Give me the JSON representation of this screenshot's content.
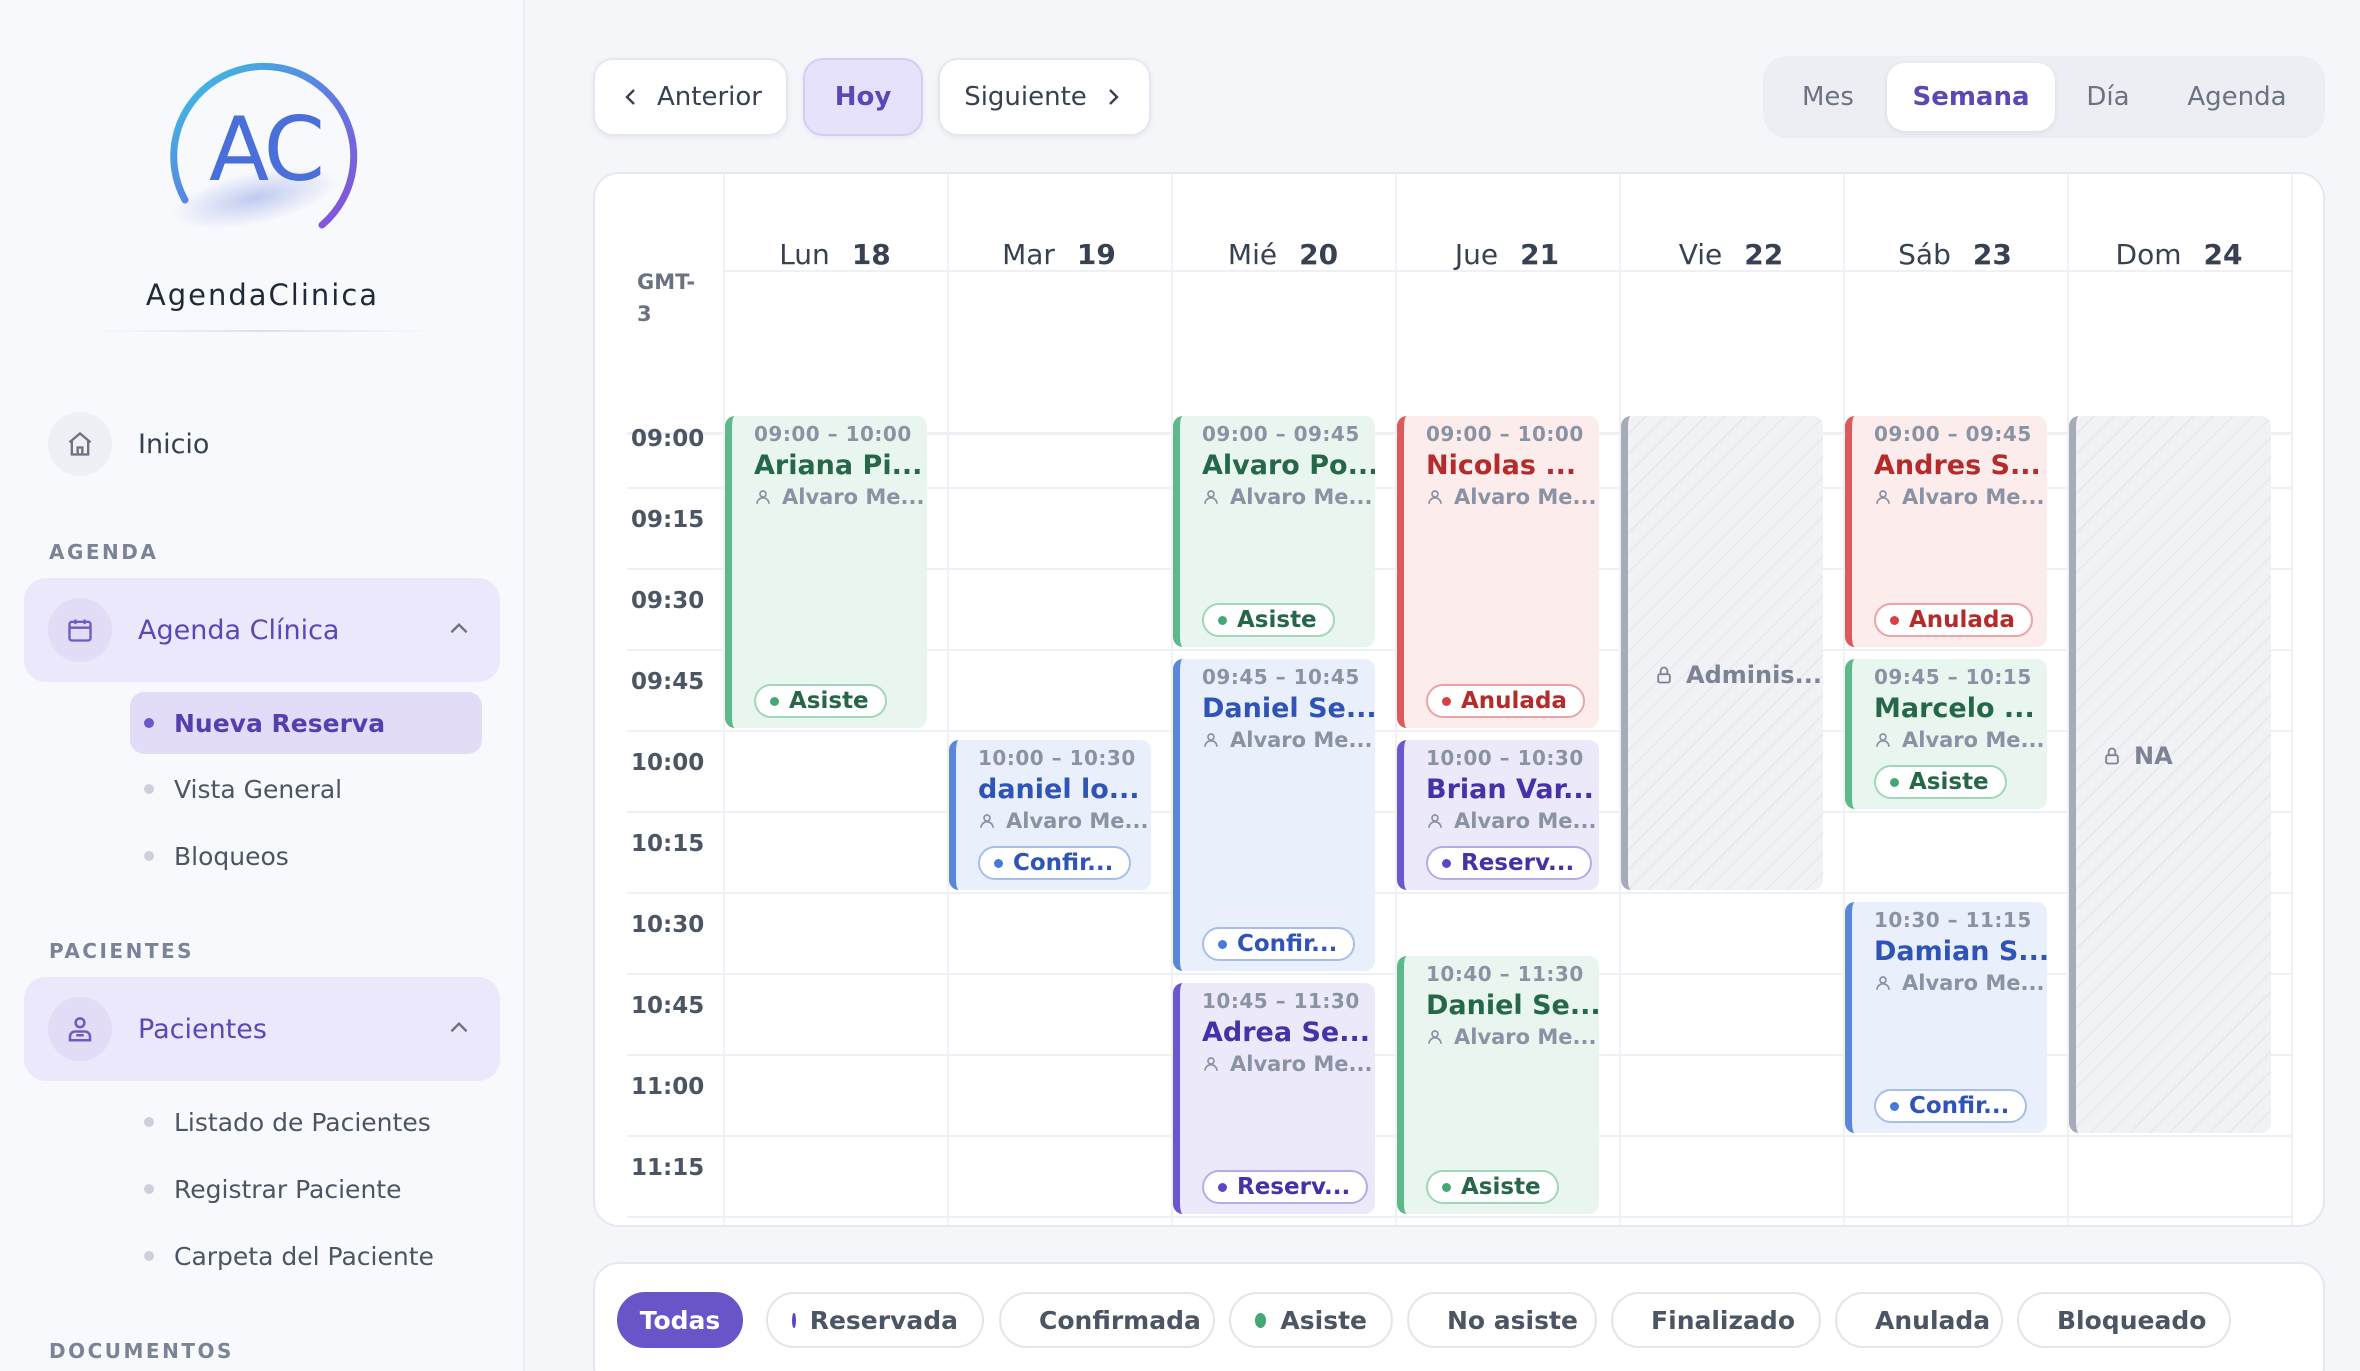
{
  "sidebar": {
    "logo_letters": "AC",
    "brand": "AgendaClinica",
    "home_label": "Inicio",
    "sections": [
      {
        "title": "AGENDA",
        "group_label": "Agenda Clínica",
        "items": [
          "Nueva Reserva",
          "Vista General",
          "Bloqueos"
        ],
        "active_item": "Nueva Reserva"
      },
      {
        "title": "PACIENTES",
        "group_label": "Pacientes",
        "items": [
          "Listado de Pacientes",
          "Registrar Paciente",
          "Carpeta del Paciente"
        ]
      },
      {
        "title": "DOCUMENTOS"
      }
    ]
  },
  "toolbar": {
    "prev_label": "Anterior",
    "today_label": "Hoy",
    "next_label": "Siguiente",
    "views": [
      "Mes",
      "Semana",
      "Día",
      "Agenda"
    ],
    "active_view": "Semana"
  },
  "calendar": {
    "timezone": "GMT-3",
    "days": [
      {
        "name": "Lun",
        "num": "18"
      },
      {
        "name": "Mar",
        "num": "19"
      },
      {
        "name": "Mié",
        "num": "20"
      },
      {
        "name": "Jue",
        "num": "21"
      },
      {
        "name": "Vie",
        "num": "22"
      },
      {
        "name": "Sáb",
        "num": "23"
      },
      {
        "name": "Dom",
        "num": "24"
      }
    ],
    "times": [
      "09:00",
      "09:15",
      "09:30",
      "09:45",
      "10:00",
      "10:15",
      "10:30",
      "10:45",
      "11:00",
      "11:15"
    ],
    "events": [
      {
        "day": 0,
        "start": "09:00",
        "end": "10:00",
        "time": "09:00 – 10:00",
        "title": "Ariana Pi...",
        "doctor": "Alvaro Me...",
        "status": "Asiste",
        "color": "green"
      },
      {
        "day": 1,
        "start": "10:00",
        "end": "10:30",
        "time": "10:00 – 10:30",
        "title": "daniel lo...",
        "doctor": "Alvaro Me...",
        "status": "Confir...",
        "color": "blue"
      },
      {
        "day": 2,
        "start": "09:00",
        "end": "09:45",
        "time": "09:00 – 09:45",
        "title": "Alvaro Po...",
        "doctor": "Alvaro Me...",
        "status": "Asiste",
        "color": "green"
      },
      {
        "day": 2,
        "start": "09:45",
        "end": "10:45",
        "time": "09:45 – 10:45",
        "title": "Daniel Se...",
        "doctor": "Alvaro Me...",
        "status": "Confir...",
        "color": "blue"
      },
      {
        "day": 2,
        "start": "10:45",
        "end": "11:30",
        "time": "10:45 – 11:30",
        "title": "Adrea Se...",
        "doctor": "Alvaro Me...",
        "status": "Reserv...",
        "color": "purple"
      },
      {
        "day": 3,
        "start": "09:00",
        "end": "10:00",
        "time": "09:00 – 10:00",
        "title": "Nicolas ...",
        "doctor": "Alvaro Me...",
        "status": "Anulada",
        "color": "red"
      },
      {
        "day": 3,
        "start": "10:00",
        "end": "10:30",
        "time": "10:00 – 10:30",
        "title": "Brian Var...",
        "doctor": "Alvaro Me...",
        "status": "Reserv...",
        "color": "purple"
      },
      {
        "day": 3,
        "start": "10:40",
        "end": "11:30",
        "time": "10:40 – 11:30",
        "title": "Daniel Se...",
        "doctor": "Alvaro Me...",
        "status": "Asiste",
        "color": "green"
      },
      {
        "day": 5,
        "start": "09:00",
        "end": "09:45",
        "time": "09:00 – 09:45",
        "title": "Andres S...",
        "doctor": "Alvaro Me...",
        "status": "Anulada",
        "color": "red"
      },
      {
        "day": 5,
        "start": "09:45",
        "end": "10:15",
        "time": "09:45 – 10:15",
        "title": "Marcelo ...",
        "doctor": "Alvaro Me...",
        "status": "Asiste",
        "color": "green"
      },
      {
        "day": 5,
        "start": "10:30",
        "end": "11:15",
        "time": "10:30 – 11:15",
        "title": "Damian S...",
        "doctor": "Alvaro Me...",
        "status": "Confir...",
        "color": "blue"
      }
    ],
    "blocks": [
      {
        "day": 4,
        "start": "09:00",
        "end": "10:30",
        "label": "Adminis...",
        "label_at": "09:45"
      },
      {
        "day": 6,
        "start": "09:00",
        "end": "11:15",
        "label": "NA",
        "label_at": "10:00"
      }
    ]
  },
  "legend": [
    {
      "label": "Todas",
      "active": true
    },
    {
      "label": "Reservada",
      "color": "#5b46c7"
    },
    {
      "label": "Confirmada",
      "color": "#4b79d8"
    },
    {
      "label": "Asiste",
      "color": "#45a874"
    },
    {
      "label": "No asiste",
      "color": "#e5a032"
    },
    {
      "label": "Finalizado",
      "color": "#1f6b5a"
    },
    {
      "label": "Anulada",
      "color": "#dc3f3f"
    },
    {
      "label": "Bloqueado",
      "color": "#9aa0ad"
    }
  ],
  "colors": {
    "accent": "#6a55c8",
    "green": "#5fb889",
    "red": "#dc5a5a",
    "blue": "#5b86dc",
    "purple": "#6a57cf"
  }
}
